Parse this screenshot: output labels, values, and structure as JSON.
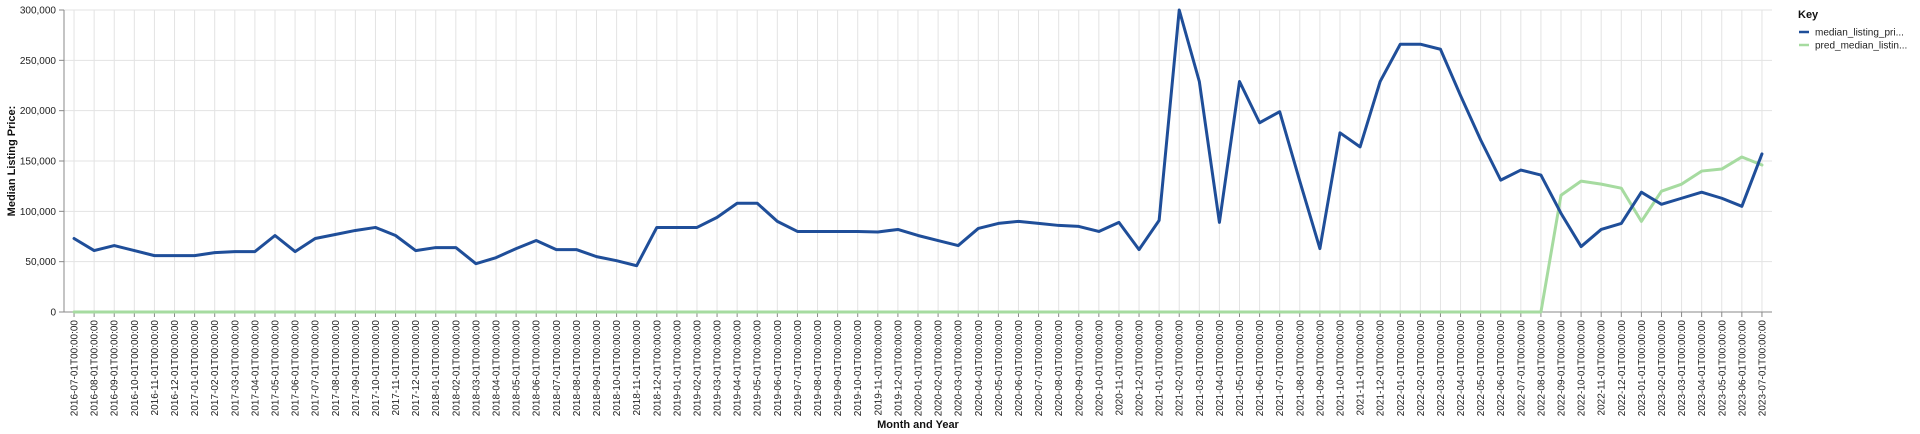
{
  "chart_data": {
    "type": "line",
    "xlabel": "Month and Year",
    "ylabel": "Median Listing Price:",
    "ylim": [
      0,
      300000
    ],
    "yticks": [
      "0",
      "50,000",
      "100,000",
      "150,000",
      "200,000",
      "250,000",
      "300,000"
    ],
    "ytick_values": [
      0,
      50000,
      100000,
      150000,
      200000,
      250000,
      300000
    ],
    "grid": true,
    "legend": {
      "title": "Key",
      "placement": "top-right"
    },
    "categories": [
      "2016-07-01T00:00:00",
      "2016-08-01T00:00:00",
      "2016-09-01T00:00:00",
      "2016-10-01T00:00:00",
      "2016-11-01T00:00:00",
      "2016-12-01T00:00:00",
      "2017-01-01T00:00:00",
      "2017-02-01T00:00:00",
      "2017-03-01T00:00:00",
      "2017-04-01T00:00:00",
      "2017-05-01T00:00:00",
      "2017-06-01T00:00:00",
      "2017-07-01T00:00:00",
      "2017-08-01T00:00:00",
      "2017-09-01T00:00:00",
      "2017-10-01T00:00:00",
      "2017-11-01T00:00:00",
      "2017-12-01T00:00:00",
      "2018-01-01T00:00:00",
      "2018-02-01T00:00:00",
      "2018-03-01T00:00:00",
      "2018-04-01T00:00:00",
      "2018-05-01T00:00:00",
      "2018-06-01T00:00:00",
      "2018-07-01T00:00:00",
      "2018-08-01T00:00:00",
      "2018-09-01T00:00:00",
      "2018-10-01T00:00:00",
      "2018-11-01T00:00:00",
      "2018-12-01T00:00:00",
      "2019-01-01T00:00:00",
      "2019-02-01T00:00:00",
      "2019-03-01T00:00:00",
      "2019-04-01T00:00:00",
      "2019-05-01T00:00:00",
      "2019-06-01T00:00:00",
      "2019-07-01T00:00:00",
      "2019-08-01T00:00:00",
      "2019-09-01T00:00:00",
      "2019-10-01T00:00:00",
      "2019-11-01T00:00:00",
      "2019-12-01T00:00:00",
      "2020-01-01T00:00:00",
      "2020-02-01T00:00:00",
      "2020-03-01T00:00:00",
      "2020-04-01T00:00:00",
      "2020-05-01T00:00:00",
      "2020-06-01T00:00:00",
      "2020-07-01T00:00:00",
      "2020-08-01T00:00:00",
      "2020-09-01T00:00:00",
      "2020-10-01T00:00:00",
      "2020-11-01T00:00:00",
      "2020-12-01T00:00:00",
      "2021-01-01T00:00:00",
      "2021-02-01T00:00:00",
      "2021-03-01T00:00:00",
      "2021-04-01T00:00:00",
      "2021-05-01T00:00:00",
      "2021-06-01T00:00:00",
      "2021-07-01T00:00:00",
      "2021-08-01T00:00:00",
      "2021-09-01T00:00:00",
      "2021-10-01T00:00:00",
      "2021-11-01T00:00:00",
      "2021-12-01T00:00:00",
      "2022-01-01T00:00:00",
      "2022-02-01T00:00:00",
      "2022-03-01T00:00:00",
      "2022-04-01T00:00:00",
      "2022-05-01T00:00:00",
      "2022-06-01T00:00:00",
      "2022-07-01T00:00:00",
      "2022-08-01T00:00:00",
      "2022-09-01T00:00:00",
      "2022-10-01T00:00:00",
      "2022-11-01T00:00:00",
      "2022-12-01T00:00:00",
      "2023-01-01T00:00:00",
      "2023-02-01T00:00:00",
      "2023-03-01T00:00:00",
      "2023-04-01T00:00:00",
      "2023-05-01T00:00:00",
      "2023-06-01T00:00:00",
      "2023-07-01T00:00:00"
    ],
    "series": [
      {
        "name": "median_listing_pri...",
        "color": "#1f4e99",
        "values": [
          73000,
          61000,
          66000,
          61000,
          56000,
          56000,
          56000,
          59000,
          60000,
          60000,
          76000,
          60000,
          73000,
          77000,
          81000,
          84000,
          76000,
          61000,
          64000,
          64000,
          48000,
          54000,
          63000,
          71000,
          62000,
          62000,
          55000,
          51000,
          46000,
          84000,
          84000,
          84000,
          94000,
          108000,
          108000,
          90000,
          80000,
          80000,
          80000,
          80000,
          79500,
          82000,
          76000,
          71000,
          66000,
          83000,
          88000,
          90000,
          88000,
          86000,
          85000,
          80000,
          89000,
          62000,
          91000,
          300000,
          229000,
          89000,
          229000,
          188000,
          199000,
          130000,
          63000,
          178000,
          164000,
          229000,
          266000,
          266000,
          261000,
          215000,
          171000,
          131000,
          141000,
          136000,
          98000,
          65000,
          82000,
          88000,
          119000,
          107000,
          113000,
          119000,
          113000,
          105000,
          157000
        ]
      },
      {
        "name": "pred_median_listin...",
        "color": "#a6dba0",
        "values": [
          0,
          0,
          0,
          0,
          0,
          0,
          0,
          0,
          0,
          0,
          0,
          0,
          0,
          0,
          0,
          0,
          0,
          0,
          0,
          0,
          0,
          0,
          0,
          0,
          0,
          0,
          0,
          0,
          0,
          0,
          0,
          0,
          0,
          0,
          0,
          0,
          0,
          0,
          0,
          0,
          0,
          0,
          0,
          0,
          0,
          0,
          0,
          0,
          0,
          0,
          0,
          0,
          0,
          0,
          0,
          0,
          0,
          0,
          0,
          0,
          0,
          0,
          0,
          0,
          0,
          0,
          0,
          0,
          0,
          0,
          0,
          0,
          0,
          0,
          116000,
          130000,
          127000,
          123000,
          90000,
          120000,
          127000,
          140000,
          142000,
          154000,
          146000
        ]
      }
    ]
  }
}
